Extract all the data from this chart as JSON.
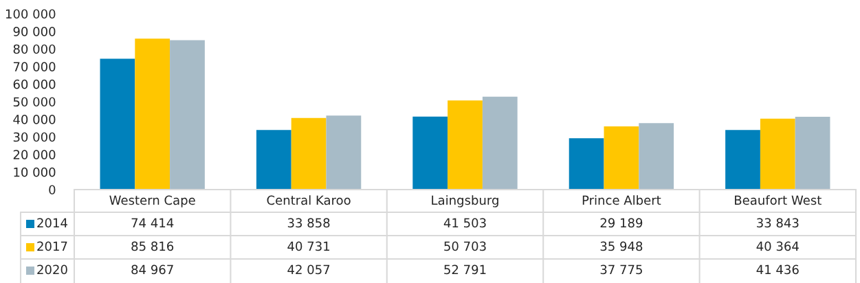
{
  "chart_data": {
    "type": "bar",
    "categories": [
      "Western Cape",
      "Central Karoo",
      "Laingsburg",
      "Prince Albert",
      "Beaufort West"
    ],
    "series": [
      {
        "name": "2014",
        "color": "#0081BB",
        "values": [
          74414,
          33858,
          41503,
          29189,
          33843
        ],
        "value_labels": [
          "74 414",
          "33 858",
          "41 503",
          "29 189",
          "33 843"
        ]
      },
      {
        "name": "2017",
        "color": "#FFC600",
        "values": [
          85816,
          40731,
          50703,
          35948,
          40364
        ],
        "value_labels": [
          "85 816",
          "40 731",
          "50 703",
          "35 948",
          "40 364"
        ]
      },
      {
        "name": "2020",
        "color": "#A7BBC7",
        "values": [
          84967,
          42057,
          52791,
          37775,
          41436
        ],
        "value_labels": [
          "84 967",
          "42 057",
          "52 791",
          "37 775",
          "41 436"
        ]
      }
    ],
    "ylim": [
      0,
      100000
    ],
    "yticks": [
      0,
      {
        "value": 10000,
        "label": "10 000"
      },
      {
        "value": 20000,
        "label": "20 000"
      },
      {
        "value": 30000,
        "label": "30 000"
      },
      {
        "value": 40000,
        "label": "40 000"
      },
      {
        "value": 50000,
        "label": "50 000"
      },
      {
        "value": 60000,
        "label": "60 000"
      },
      {
        "value": 70000,
        "label": "70 000"
      },
      {
        "value": 80000,
        "label": "80 000"
      },
      {
        "value": 90000,
        "label": "90 000"
      },
      {
        "value": 100000,
        "label": "100 000"
      }
    ],
    "legend": "bottom left"
  }
}
